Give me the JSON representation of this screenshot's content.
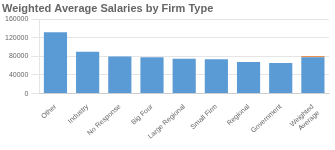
{
  "chart_data": {
    "type": "bar",
    "title": "Weighted Average Salaries by Firm Type",
    "categories": [
      "Other",
      "Industry",
      "No Response",
      "Big Four",
      "Large Regional",
      "Small Firm",
      "Regional",
      "Government",
      "Weighted\nAverage"
    ],
    "series": [
      {
        "color": "#5b9bd5",
        "values": [
          132000,
          90000,
          80000,
          78000,
          75000,
          74000,
          68000,
          66000,
          78000
        ]
      },
      {
        "color": "#e87722",
        "values": [
          null,
          null,
          null,
          null,
          null,
          null,
          null,
          null,
          2500
        ]
      }
    ],
    "stacked": true,
    "ylim": [
      0,
      160000
    ],
    "yticks": [
      0,
      40000,
      80000,
      120000,
      160000
    ],
    "grid": true
  }
}
